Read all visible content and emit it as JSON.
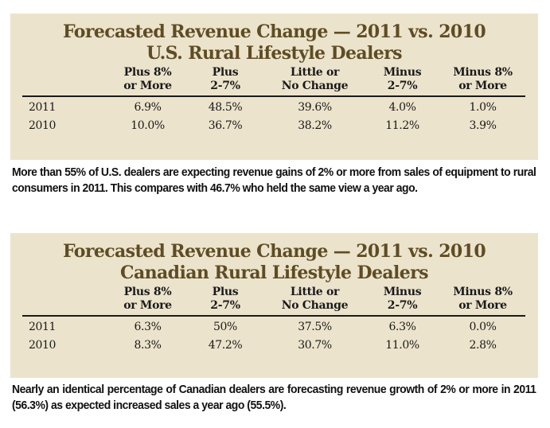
{
  "us": {
    "title_line1": "Forecasted Revenue Change — 2011 vs. 2010",
    "title_line2": "U.S. Rural Lifestyle Dealers",
    "columns": [
      {
        "line1": "Plus 8%",
        "line2": "or More"
      },
      {
        "line1": "Plus",
        "line2": "2-7%"
      },
      {
        "line1": "Little or",
        "line2": "No Change"
      },
      {
        "line1": "Minus",
        "line2": "2-7%"
      },
      {
        "line1": "Minus 8%",
        "line2": "or More"
      }
    ],
    "rows": [
      {
        "year": "2011",
        "values": [
          "6.9%",
          "48.5%",
          "39.6%",
          "4.0%",
          "1.0%"
        ]
      },
      {
        "year": "2010",
        "values": [
          "10.0%",
          "36.7%",
          "38.2%",
          "11.2%",
          "3.9%"
        ]
      }
    ],
    "caption": "More than 55% of U.S. dealers are expecting revenue gains of 2% or more from sales of equipment to rural consumers in 2011. This compares with 46.7% who held the same view a year ago."
  },
  "canada": {
    "title_line1": "Forecasted Revenue Change — 2011 vs. 2010",
    "title_line2": "Canadian Rural Lifestyle Dealers",
    "columns": [
      {
        "line1": "Plus 8%",
        "line2": "or More"
      },
      {
        "line1": "Plus",
        "line2": "2-7%"
      },
      {
        "line1": "Little or",
        "line2": "No Change"
      },
      {
        "line1": "Minus",
        "line2": "2-7%"
      },
      {
        "line1": "Minus 8%",
        "line2": "or More"
      }
    ],
    "rows": [
      {
        "year": "2011",
        "values": [
          "6.3%",
          "50%",
          "37.5%",
          "6.3%",
          "0.0%"
        ]
      },
      {
        "year": "2010",
        "values": [
          "8.3%",
          "47.2%",
          "30.7%",
          "11.0%",
          "2.8%"
        ]
      }
    ],
    "caption": "Nearly an identical percentage of Canadian dealers are forecasting revenue growth of 2% or more in 2011 (56.3%) as expected increased sales a year ago (55.5%)."
  },
  "colors": {
    "panel_background": "#ece3cc",
    "title_color": "#5e4c24",
    "text_color": "#1a1a1a"
  }
}
